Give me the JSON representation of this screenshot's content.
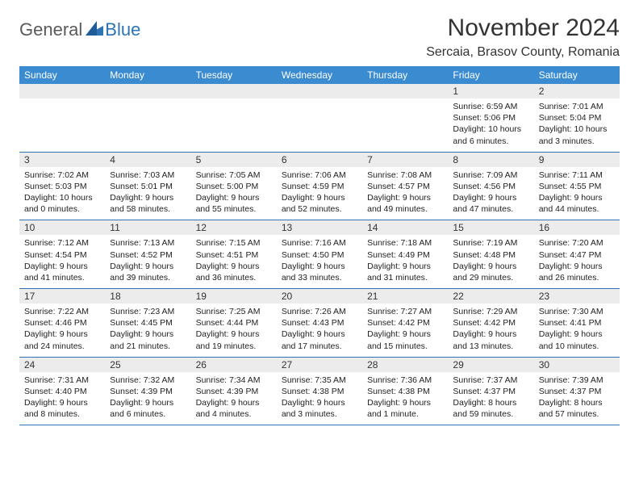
{
  "logo": {
    "general": "General",
    "blue": "Blue"
  },
  "title": "November 2024",
  "location": "Sercaia, Brasov County, Romania",
  "colors": {
    "header_bg": "#3b8bd0",
    "header_text": "#ffffff",
    "daynum_bg": "#ececec",
    "rule": "#2e74b5",
    "logo_gray": "#5a5a5a",
    "logo_blue": "#2e74b5",
    "page_bg": "#ffffff"
  },
  "typography": {
    "title_fontsize": 30,
    "location_fontsize": 16,
    "weekday_fontsize": 12,
    "daynum_fontsize": 12,
    "body_fontsize": 10.5
  },
  "weekdays": [
    "Sunday",
    "Monday",
    "Tuesday",
    "Wednesday",
    "Thursday",
    "Friday",
    "Saturday"
  ],
  "weeks": [
    [
      {
        "blank": true
      },
      {
        "blank": true
      },
      {
        "blank": true
      },
      {
        "blank": true
      },
      {
        "blank": true
      },
      {
        "n": "1",
        "sunrise": "Sunrise: 6:59 AM",
        "sunset": "Sunset: 5:06 PM",
        "daylight": "Daylight: 10 hours and 6 minutes."
      },
      {
        "n": "2",
        "sunrise": "Sunrise: 7:01 AM",
        "sunset": "Sunset: 5:04 PM",
        "daylight": "Daylight: 10 hours and 3 minutes."
      }
    ],
    [
      {
        "n": "3",
        "sunrise": "Sunrise: 7:02 AM",
        "sunset": "Sunset: 5:03 PM",
        "daylight": "Daylight: 10 hours and 0 minutes."
      },
      {
        "n": "4",
        "sunrise": "Sunrise: 7:03 AM",
        "sunset": "Sunset: 5:01 PM",
        "daylight": "Daylight: 9 hours and 58 minutes."
      },
      {
        "n": "5",
        "sunrise": "Sunrise: 7:05 AM",
        "sunset": "Sunset: 5:00 PM",
        "daylight": "Daylight: 9 hours and 55 minutes."
      },
      {
        "n": "6",
        "sunrise": "Sunrise: 7:06 AM",
        "sunset": "Sunset: 4:59 PM",
        "daylight": "Daylight: 9 hours and 52 minutes."
      },
      {
        "n": "7",
        "sunrise": "Sunrise: 7:08 AM",
        "sunset": "Sunset: 4:57 PM",
        "daylight": "Daylight: 9 hours and 49 minutes."
      },
      {
        "n": "8",
        "sunrise": "Sunrise: 7:09 AM",
        "sunset": "Sunset: 4:56 PM",
        "daylight": "Daylight: 9 hours and 47 minutes."
      },
      {
        "n": "9",
        "sunrise": "Sunrise: 7:11 AM",
        "sunset": "Sunset: 4:55 PM",
        "daylight": "Daylight: 9 hours and 44 minutes."
      }
    ],
    [
      {
        "n": "10",
        "sunrise": "Sunrise: 7:12 AM",
        "sunset": "Sunset: 4:54 PM",
        "daylight": "Daylight: 9 hours and 41 minutes."
      },
      {
        "n": "11",
        "sunrise": "Sunrise: 7:13 AM",
        "sunset": "Sunset: 4:52 PM",
        "daylight": "Daylight: 9 hours and 39 minutes."
      },
      {
        "n": "12",
        "sunrise": "Sunrise: 7:15 AM",
        "sunset": "Sunset: 4:51 PM",
        "daylight": "Daylight: 9 hours and 36 minutes."
      },
      {
        "n": "13",
        "sunrise": "Sunrise: 7:16 AM",
        "sunset": "Sunset: 4:50 PM",
        "daylight": "Daylight: 9 hours and 33 minutes."
      },
      {
        "n": "14",
        "sunrise": "Sunrise: 7:18 AM",
        "sunset": "Sunset: 4:49 PM",
        "daylight": "Daylight: 9 hours and 31 minutes."
      },
      {
        "n": "15",
        "sunrise": "Sunrise: 7:19 AM",
        "sunset": "Sunset: 4:48 PM",
        "daylight": "Daylight: 9 hours and 29 minutes."
      },
      {
        "n": "16",
        "sunrise": "Sunrise: 7:20 AM",
        "sunset": "Sunset: 4:47 PM",
        "daylight": "Daylight: 9 hours and 26 minutes."
      }
    ],
    [
      {
        "n": "17",
        "sunrise": "Sunrise: 7:22 AM",
        "sunset": "Sunset: 4:46 PM",
        "daylight": "Daylight: 9 hours and 24 minutes."
      },
      {
        "n": "18",
        "sunrise": "Sunrise: 7:23 AM",
        "sunset": "Sunset: 4:45 PM",
        "daylight": "Daylight: 9 hours and 21 minutes."
      },
      {
        "n": "19",
        "sunrise": "Sunrise: 7:25 AM",
        "sunset": "Sunset: 4:44 PM",
        "daylight": "Daylight: 9 hours and 19 minutes."
      },
      {
        "n": "20",
        "sunrise": "Sunrise: 7:26 AM",
        "sunset": "Sunset: 4:43 PM",
        "daylight": "Daylight: 9 hours and 17 minutes."
      },
      {
        "n": "21",
        "sunrise": "Sunrise: 7:27 AM",
        "sunset": "Sunset: 4:42 PM",
        "daylight": "Daylight: 9 hours and 15 minutes."
      },
      {
        "n": "22",
        "sunrise": "Sunrise: 7:29 AM",
        "sunset": "Sunset: 4:42 PM",
        "daylight": "Daylight: 9 hours and 13 minutes."
      },
      {
        "n": "23",
        "sunrise": "Sunrise: 7:30 AM",
        "sunset": "Sunset: 4:41 PM",
        "daylight": "Daylight: 9 hours and 10 minutes."
      }
    ],
    [
      {
        "n": "24",
        "sunrise": "Sunrise: 7:31 AM",
        "sunset": "Sunset: 4:40 PM",
        "daylight": "Daylight: 9 hours and 8 minutes."
      },
      {
        "n": "25",
        "sunrise": "Sunrise: 7:32 AM",
        "sunset": "Sunset: 4:39 PM",
        "daylight": "Daylight: 9 hours and 6 minutes."
      },
      {
        "n": "26",
        "sunrise": "Sunrise: 7:34 AM",
        "sunset": "Sunset: 4:39 PM",
        "daylight": "Daylight: 9 hours and 4 minutes."
      },
      {
        "n": "27",
        "sunrise": "Sunrise: 7:35 AM",
        "sunset": "Sunset: 4:38 PM",
        "daylight": "Daylight: 9 hours and 3 minutes."
      },
      {
        "n": "28",
        "sunrise": "Sunrise: 7:36 AM",
        "sunset": "Sunset: 4:38 PM",
        "daylight": "Daylight: 9 hours and 1 minute."
      },
      {
        "n": "29",
        "sunrise": "Sunrise: 7:37 AM",
        "sunset": "Sunset: 4:37 PM",
        "daylight": "Daylight: 8 hours and 59 minutes."
      },
      {
        "n": "30",
        "sunrise": "Sunrise: 7:39 AM",
        "sunset": "Sunset: 4:37 PM",
        "daylight": "Daylight: 8 hours and 57 minutes."
      }
    ]
  ]
}
